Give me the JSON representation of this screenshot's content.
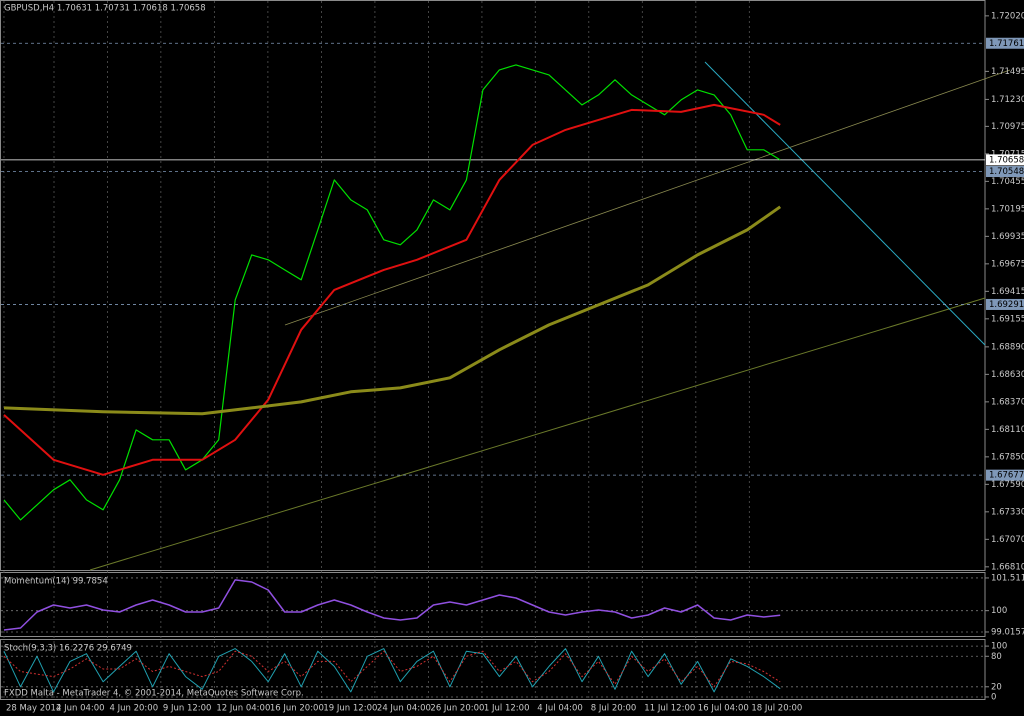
{
  "chart_data": [
    {
      "type": "line",
      "title": "GBPUSD,H4  1.70631 1.70731 1.70618 1.70658",
      "x": [
        0,
        1,
        2,
        3,
        4,
        5,
        6,
        7,
        8,
        9,
        10,
        11,
        12,
        13,
        14,
        15,
        16,
        17,
        18,
        19,
        20,
        21,
        22,
        23,
        24,
        25,
        26,
        27,
        28,
        29,
        30,
        31,
        32,
        33,
        34,
        35,
        36,
        37,
        38,
        39,
        40,
        41,
        42,
        43,
        44,
        45,
        46,
        47
      ],
      "xlim": [
        -0.24,
        59.4
      ],
      "xticks": [
        {
          "value": 0,
          "label": "28 May 2014"
        },
        {
          "value": 3.03,
          "label": "2 Jun 04:00"
        },
        {
          "value": 6.27,
          "label": "4 Jun 20:00"
        },
        {
          "value": 9.5,
          "label": "9 Jun 12:00"
        },
        {
          "value": 12.74,
          "label": "12 Jun 04:00"
        },
        {
          "value": 15.98,
          "label": "16 Jun 20:00"
        },
        {
          "value": 19.22,
          "label": "19 Jun 12:00"
        },
        {
          "value": 22.46,
          "label": "24 Jun 04:00"
        },
        {
          "value": 25.7,
          "label": "26 Jun 20:00"
        },
        {
          "value": 28.94,
          "label": "1 Jul 12:00"
        },
        {
          "value": 32.17,
          "label": "4 Jul 04:00"
        },
        {
          "value": 35.41,
          "label": "8 Jul 20:00"
        },
        {
          "value": 38.65,
          "label": "11 Jul 12:00"
        },
        {
          "value": 41.89,
          "label": "16 Jul 04:00"
        },
        {
          "value": 45.13,
          "label": "18 Jul 20:00"
        }
      ],
      "ylim": [
        1.6678,
        1.7217
      ],
      "yticks": [
        {
          "value": 1.7202,
          "label": "1.72020"
        },
        1.71495,
        {
          "value": 1.7123,
          "label": "1.71230"
        },
        1.70975,
        1.70715,
        1.70455,
        1.70195,
        1.69935,
        1.69675,
        1.69415,
        1.69155,
        {
          "value": 1.6889,
          "label": "1.68890"
        },
        {
          "value": 1.6863,
          "label": "1.68630"
        },
        {
          "value": 1.6837,
          "label": "1.68370"
        },
        {
          "value": 1.6811,
          "label": "1.68110"
        },
        {
          "value": 1.6785,
          "label": "1.67850"
        },
        {
          "value": 1.6759,
          "label": "1.67590"
        },
        {
          "value": 1.6733,
          "label": "1.67330"
        },
        {
          "value": 1.6707,
          "label": "1.67070"
        },
        {
          "value": 1.6681,
          "label": "1.66810"
        }
      ],
      "levels": [
        {
          "value": 1.71761,
          "color": "#7f98b8",
          "dash": true
        },
        {
          "value": 1.70548,
          "color": "#7f98b8",
          "dash": true
        },
        {
          "value": 1.69291,
          "color": "#7f98b8",
          "dash": true
        },
        {
          "value": 1.67677,
          "color": "#7f98b8",
          "dash": true
        },
        {
          "value": 1.70658,
          "color": "#ffffff",
          "dash": false
        }
      ],
      "series": [
        {
          "color": "#00e000",
          "width": 1.2,
          "values": [
            1.67443,
            1.67254,
            1.67396,
            1.67538,
            1.67633,
            1.67443,
            1.67349,
            1.67633,
            1.68105,
            1.68011,
            1.68011,
            1.67727,
            1.67822,
            1.68011,
            1.69334,
            1.6976,
            1.69713,
            1.69618,
            1.69524,
            1.69996,
            1.70469,
            1.7028,
            1.70185,
            1.69902,
            1.69855,
            1.69996,
            1.7028,
            1.70185,
            1.70469,
            1.7132,
            1.71509,
            1.71556,
            1.71509,
            1.71462,
            1.7132,
            1.71178,
            1.71273,
            1.71415,
            1.71273,
            1.71178,
            1.71084,
            1.71225,
            1.7132,
            1.71273,
            1.71084,
            1.70753,
            1.70753,
            1.70658
          ]
        },
        {
          "color": "#e01010",
          "width": 2,
          "x": [
            0,
            3,
            6,
            9,
            12,
            14,
            16,
            18,
            20,
            23,
            25,
            28,
            30,
            32,
            34,
            36,
            38,
            41,
            43,
            46,
            47
          ],
          "values": [
            1.68247,
            1.67822,
            1.6768,
            1.67822,
            1.67822,
            1.68011,
            1.68389,
            1.69051,
            1.69429,
            1.69618,
            1.69713,
            1.69902,
            1.70469,
            1.708,
            1.70942,
            1.71036,
            1.71131,
            1.71112,
            1.71178,
            1.71084,
            1.70989
          ]
        },
        {
          "color": "#8b8b1a",
          "width": 3,
          "x": [
            0,
            6,
            12,
            15,
            18,
            21,
            24,
            27,
            30,
            33,
            36,
            39,
            42,
            45,
            47
          ],
          "values": [
            1.68313,
            1.68276,
            1.68257,
            1.68313,
            1.6837,
            1.68465,
            1.68502,
            1.68597,
            1.68862,
            1.69098,
            1.69287,
            1.69476,
            1.6976,
            1.69996,
            1.70214
          ]
        }
      ]
    },
    {
      "type": "line",
      "title": "Momentum(14) 99.7854",
      "ylim": [
        98.83,
        101.74
      ],
      "yticks": [
        101.5112,
        100,
        99.0157
      ],
      "series": [
        {
          "color": "#9050e0",
          "width": 1.5,
          "values": [
            99.108,
            99.201,
            99.94,
            100.264,
            100.125,
            100.264,
            100.033,
            99.94,
            100.264,
            100.495,
            100.264,
            99.94,
            99.94,
            100.125,
            101.419,
            101.326,
            100.957,
            99.94,
            99.94,
            100.264,
            100.495,
            100.264,
            99.94,
            99.663,
            99.57,
            99.663,
            100.264,
            100.402,
            100.264,
            100.495,
            100.726,
            100.587,
            100.264,
            99.94,
            99.802,
            99.94,
            100.033,
            99.94,
            99.663,
            99.802,
            100.125,
            99.94,
            100.264,
            99.663,
            99.57,
            99.802,
            99.709,
            99.7854
          ]
        }
      ]
    },
    {
      "type": "line",
      "title": "Stoch(9,3,3) 16.2276 29.6749",
      "ylim": [
        -4,
        112
      ],
      "yticks": [
        100,
        80,
        20,
        0
      ],
      "series": [
        {
          "color": "#20a0b0",
          "width": 1,
          "values": [
            90,
            20,
            80,
            10,
            70,
            85,
            30,
            60,
            90,
            20,
            85,
            40,
            15,
            80,
            95,
            70,
            30,
            85,
            20,
            90,
            60,
            10,
            80,
            95,
            30,
            70,
            90,
            20,
            90,
            85,
            40,
            80,
            20,
            60,
            95,
            30,
            80,
            15,
            90,
            40,
            85,
            25,
            70,
            10,
            75,
            60,
            40,
            16.2276
          ]
        },
        {
          "color": "#d03030",
          "width": 1,
          "dash": true,
          "values": [
            80,
            50,
            45,
            40,
            55,
            75,
            55,
            55,
            75,
            50,
            60,
            50,
            40,
            50,
            90,
            80,
            50,
            70,
            40,
            70,
            70,
            30,
            60,
            90,
            50,
            60,
            80,
            30,
            80,
            90,
            50,
            70,
            30,
            50,
            85,
            40,
            70,
            25,
            80,
            50,
            75,
            30,
            60,
            20,
            70,
            65,
            50,
            29.6749
          ]
        }
      ]
    }
  ],
  "footer": "FXDD Malta - MetaTrader 4, © 2001-2014, MetaQuotes Software Corp."
}
